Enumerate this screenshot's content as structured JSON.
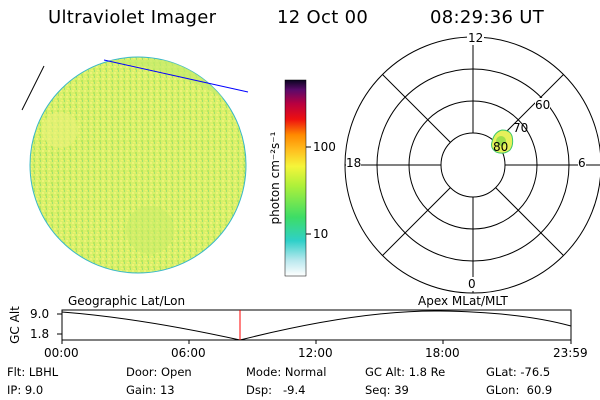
{
  "header": {
    "title": "Ultraviolet Imager",
    "date": "12 Oct 00",
    "time": "08:29:36 UT"
  },
  "colorbar": {
    "label": "photon cm⁻²s⁻¹",
    "tick_100": "100",
    "tick_10": "10"
  },
  "polar": {
    "mlt_top": "12",
    "mlt_left": "18",
    "mlt_right": "6",
    "mlt_bottom": "0",
    "lat_60": "60",
    "lat_70": "70",
    "lat_80": "80"
  },
  "footer": {
    "left_caption": "Geographic Lat/Lon",
    "right_caption": "Apex MLat/MLT"
  },
  "altitude_plot": {
    "ylabel": "GC Alt",
    "y_top": "9.0",
    "y_bottom": "1.8",
    "x_ticks": [
      "00:00",
      "06:00",
      "12:00",
      "18:00",
      "23:59"
    ],
    "current_time_marker_color": "#ff0000"
  },
  "info": {
    "filter": "Flt: LBHL",
    "ip": "IP:  9.0",
    "door": "Door: Open",
    "gain": "Gain: 13",
    "mode": "Mode: Normal",
    "dsp": "Dsp:   -9.4",
    "gc_alt": "GC Alt: 1.8 Re",
    "seq": "Seq: 39",
    "glat": "GLat: -76.5",
    "glon": "GLon:  60.9"
  }
}
